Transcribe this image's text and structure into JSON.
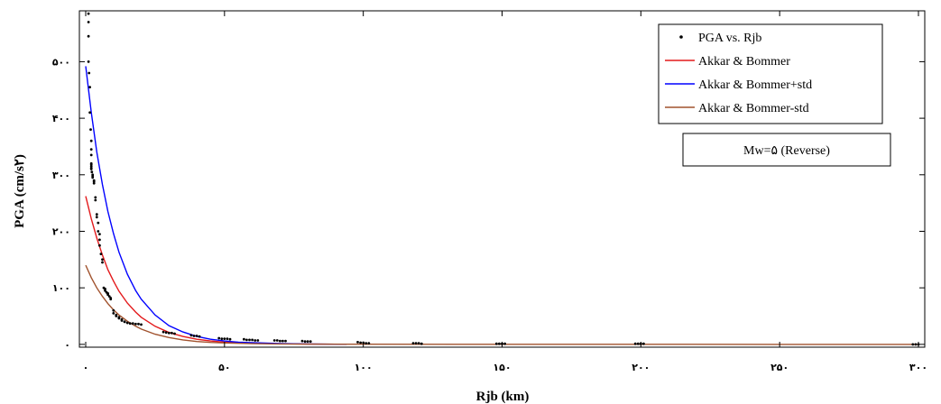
{
  "chart_data": {
    "type": "scatter",
    "xlabel": "Rjb (km)",
    "ylabel": "PGA (cm/s۲)",
    "xlim": [
      0,
      300
    ],
    "ylim": [
      -5,
      590
    ],
    "x_ticks": [
      0,
      50,
      100,
      150,
      200,
      250,
      300
    ],
    "x_tick_labels": [
      "٠",
      "۵٠",
      "۱٠٠",
      "۱۵٠",
      "۲٠٠",
      "۲۵٠",
      "۳٠٠"
    ],
    "y_ticks": [
      0,
      100,
      200,
      300,
      400,
      500
    ],
    "y_tick_labels": [
      "٠",
      "۱٠٠",
      "۲٠٠",
      "۳٠٠",
      "۴٠٠",
      "۵٠٠"
    ],
    "grid": false,
    "legend_position": "top-right",
    "annotation": "Mw=۵ (Reverse)",
    "series": [
      {
        "name": "PGA vs. Rjb",
        "kind": "points",
        "color": "#000000",
        "x": [
          1,
          1,
          1,
          1,
          1.2,
          1.5,
          1.5,
          1.8,
          2,
          2,
          2,
          2,
          2,
          2,
          2,
          2,
          2.2,
          2.5,
          2.5,
          2.5,
          3,
          3,
          3,
          3.5,
          3.5,
          4,
          4,
          4.5,
          4.5,
          5,
          5,
          5,
          5.5,
          6,
          6,
          6.5,
          7,
          7,
          7.5,
          8,
          8,
          8.5,
          9,
          9,
          10,
          10,
          11,
          11,
          12,
          12,
          13,
          13,
          14,
          14,
          15,
          15,
          16,
          17,
          18,
          19,
          20,
          28,
          29,
          30,
          31,
          32,
          38,
          39,
          40,
          41,
          48,
          49,
          50,
          51,
          52,
          57,
          58,
          59,
          60,
          61,
          62,
          68,
          69,
          70,
          71,
          72,
          78,
          79,
          80,
          81,
          98,
          99,
          100,
          101,
          102,
          118,
          119,
          120,
          121,
          148,
          149,
          150,
          151,
          198,
          199,
          200,
          201,
          298,
          299,
          300
        ],
        "y": [
          585,
          570,
          545,
          500,
          480,
          455,
          410,
          380,
          360,
          345,
          335,
          320,
          318,
          315,
          312,
          310,
          305,
          300,
          298,
          295,
          290,
          288,
          285,
          260,
          255,
          230,
          225,
          215,
          200,
          195,
          185,
          175,
          160,
          150,
          145,
          100,
          98,
          95,
          92,
          90,
          88,
          85,
          82,
          80,
          60,
          55,
          52,
          50,
          48,
          46,
          44,
          42,
          40,
          40,
          38,
          38,
          37,
          37,
          36,
          36,
          35,
          22,
          21,
          20,
          20,
          19,
          16,
          15,
          15,
          14,
          11,
          10,
          10,
          10,
          9,
          9,
          8,
          8,
          8,
          7,
          7,
          7,
          7,
          6,
          6,
          6,
          6,
          5,
          5,
          5,
          4,
          3,
          3,
          2,
          2,
          2,
          2,
          2,
          1,
          1,
          1,
          1,
          1,
          1,
          1,
          1,
          1,
          0,
          0,
          0
        ]
      },
      {
        "name": "Akkar & Bommer",
        "kind": "line",
        "color": "#e31a1c",
        "x": [
          0,
          2,
          4,
          6,
          8,
          10,
          12,
          15,
          18,
          20,
          25,
          30,
          35,
          40,
          45,
          50,
          55,
          60,
          70,
          80,
          90,
          94
        ],
        "y": [
          262,
          222,
          188,
          158,
          132,
          112,
          94,
          73,
          57,
          48,
          32,
          21,
          14,
          9,
          6,
          4,
          3,
          2,
          1,
          0.5,
          0.2,
          0.1
        ]
      },
      {
        "name": "Akkar & Bommer+std",
        "kind": "line",
        "color": "#0000ff",
        "x": [
          0,
          2,
          4,
          6,
          8,
          10,
          12,
          15,
          18,
          20,
          25,
          30,
          35,
          40,
          45,
          50,
          55,
          60,
          70,
          80,
          90,
          94
        ],
        "y": [
          492,
          410,
          340,
          283,
          235,
          196,
          163,
          124,
          95,
          80,
          52,
          33,
          22,
          14,
          9,
          6,
          4,
          3,
          1.5,
          0.7,
          0.3,
          0.2
        ]
      },
      {
        "name": "Akkar & Bommer-std",
        "kind": "line",
        "color": "#a0522d",
        "x": [
          0,
          2,
          4,
          6,
          8,
          10,
          12,
          15,
          18,
          20,
          25,
          30,
          35,
          40,
          45,
          50,
          60,
          70,
          80,
          100,
          150,
          200,
          250,
          300
        ],
        "y": [
          140,
          118,
          100,
          85,
          72,
          61,
          52,
          41,
          32,
          27,
          18,
          12,
          8,
          5,
          3.5,
          2.5,
          1.2,
          0.7,
          0.4,
          0.2,
          0.1,
          0.05,
          0.02,
          0.01
        ]
      }
    ]
  }
}
